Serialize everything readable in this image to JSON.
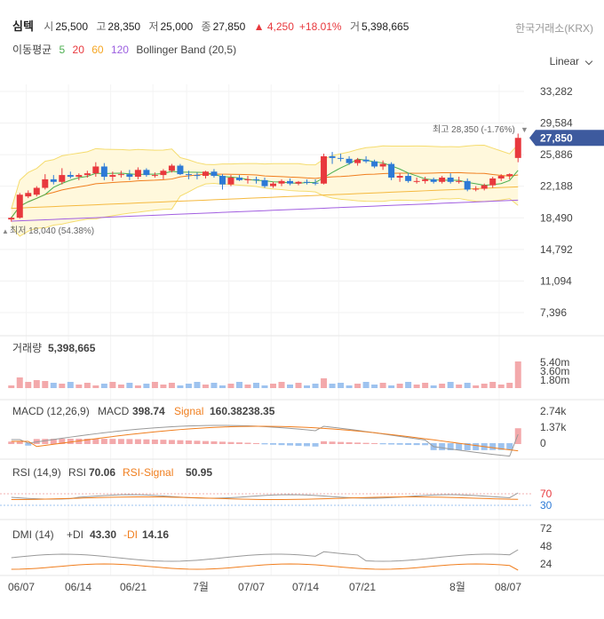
{
  "header": {
    "name": "심텍",
    "open_label": "시",
    "open": "25,500",
    "high_label": "고",
    "high": "28,350",
    "low_label": "저",
    "low": "25,000",
    "close_label": "종",
    "close": "27,850",
    "change": "▲ 4,250",
    "change_pct": "+18.01%",
    "volume_label": "거",
    "volume": "5,398,665",
    "exchange": "한국거래소(KRX)"
  },
  "ma_legend": {
    "title": "이동평균",
    "items": [
      {
        "label": "5",
        "color": "#4caf50"
      },
      {
        "label": "20",
        "color": "#e8383d"
      },
      {
        "label": "60",
        "color": "#f5a623"
      },
      {
        "label": "120",
        "color": "#9c5fe0"
      }
    ],
    "bollinger": "Bollinger Band (20,5)"
  },
  "scale_selector": "Linear",
  "colors": {
    "up": "#e8383d",
    "down": "#2d7ad6",
    "bollinger": "#f5dc6e",
    "bb_fill": "#fff8dc",
    "ma5": "#4caf50",
    "ma20": "#f07e1e",
    "ma60": "#f5b93f",
    "ma120": "#a25fe0",
    "price_tag": "#3d5a9e"
  },
  "chart_data": {
    "type": "candlestick",
    "y_ticks": [
      "33,282",
      "29,584",
      "25,886",
      "22,188",
      "18,490",
      "14,792",
      "11,094",
      "7,396"
    ],
    "ylim": [
      7396,
      33282
    ],
    "x_ticks": [
      "06/07",
      "06/14",
      "06/21",
      "7월",
      "07/07",
      "07/14",
      "07/21",
      "8월",
      "08/07"
    ],
    "high_marker": "최고 28,350 (-1.76%)",
    "low_marker": "최저 18,040 (54.38%)",
    "last_price_tag": "27,850",
    "candles": [
      [
        18300,
        18600,
        18040,
        18500
      ],
      [
        18500,
        21400,
        18400,
        21200
      ],
      [
        21000,
        21700,
        20800,
        21400
      ],
      [
        21200,
        22200,
        21000,
        22000
      ],
      [
        22000,
        23600,
        21800,
        23000
      ],
      [
        23000,
        23500,
        22400,
        22700
      ],
      [
        22700,
        24300,
        22400,
        23500
      ],
      [
        23500,
        23900,
        23100,
        23300
      ],
      [
        23300,
        23700,
        22900,
        23500
      ],
      [
        23500,
        24000,
        23200,
        23700
      ],
      [
        23700,
        25000,
        23300,
        24500
      ],
      [
        24500,
        24900,
        22900,
        23300
      ],
      [
        23300,
        23900,
        22800,
        23500
      ],
      [
        23500,
        24000,
        23200,
        23600
      ],
      [
        23600,
        24100,
        22900,
        23300
      ],
      [
        23300,
        24400,
        23000,
        24100
      ],
      [
        24100,
        24300,
        23300,
        23500
      ],
      [
        23500,
        23800,
        23200,
        23500
      ],
      [
        23500,
        24200,
        23000,
        24000
      ],
      [
        24000,
        24800,
        23800,
        24600
      ],
      [
        24600,
        24800,
        23500,
        23600
      ],
      [
        23600,
        24000,
        23000,
        23500
      ],
      [
        23500,
        23800,
        23000,
        23400
      ],
      [
        23400,
        24000,
        23100,
        23900
      ],
      [
        23900,
        24200,
        23200,
        23400
      ],
      [
        23400,
        23600,
        21800,
        22400
      ],
      [
        22400,
        23500,
        22200,
        23200
      ],
      [
        23200,
        23500,
        22800,
        22900
      ],
      [
        22900,
        23400,
        22500,
        23000
      ],
      [
        23000,
        23300,
        22500,
        22900
      ],
      [
        22900,
        23200,
        22000,
        22200
      ],
      [
        22200,
        22700,
        22000,
        22500
      ],
      [
        22500,
        23000,
        22200,
        22800
      ],
      [
        22800,
        23100,
        22300,
        22500
      ],
      [
        22500,
        22800,
        22300,
        22700
      ],
      [
        22700,
        23000,
        22400,
        22600
      ],
      [
        22600,
        23000,
        22300,
        22500
      ],
      [
        22500,
        26000,
        22400,
        25700
      ],
      [
        25700,
        26200,
        24800,
        25500
      ],
      [
        25500,
        26000,
        25100,
        25400
      ],
      [
        25400,
        25700,
        24700,
        24900
      ],
      [
        24900,
        25500,
        24600,
        25300
      ],
      [
        25300,
        25700,
        24900,
        25100
      ],
      [
        25100,
        25300,
        24300,
        24500
      ],
      [
        24500,
        25200,
        24100,
        24800
      ],
      [
        24800,
        25000,
        22900,
        23200
      ],
      [
        23200,
        23700,
        22700,
        23400
      ],
      [
        23400,
        23700,
        22600,
        22800
      ],
      [
        22800,
        23200,
        22500,
        22800
      ],
      [
        22800,
        23300,
        22500,
        23000
      ],
      [
        23000,
        23200,
        22500,
        22700
      ],
      [
        22700,
        23400,
        22500,
        23200
      ],
      [
        23200,
        23700,
        22500,
        22700
      ],
      [
        22700,
        23300,
        22500,
        22800
      ],
      [
        22800,
        23100,
        21600,
        21800
      ],
      [
        21800,
        22200,
        21600,
        21900
      ],
      [
        21900,
        22500,
        21700,
        22300
      ],
      [
        22300,
        23300,
        22000,
        23100
      ],
      [
        23100,
        23600,
        22800,
        23400
      ],
      [
        23400,
        23700,
        23000,
        23600
      ],
      [
        25500,
        28350,
        25000,
        27850
      ]
    ],
    "volume_panel": {
      "label": "거래량",
      "value": "5,398,665",
      "y_ticks": [
        "5.40m",
        "3.60m",
        "1.80m"
      ]
    },
    "macd_panel": {
      "label": "MACD (12,26,9)",
      "macd_label": "MACD",
      "macd": "398.74",
      "signal_label": "Signal",
      "signal": "160.38238.35",
      "y_ticks": [
        "2.74k",
        "1.37k",
        "0"
      ]
    },
    "rsi_panel": {
      "label": "RSI (14,9)",
      "rsi_label": "RSI",
      "rsi": "70.06",
      "signal_label": "RSI-Signal",
      "signal": "50.95",
      "y_ticks": [
        "70",
        "30"
      ]
    },
    "dmi_panel": {
      "label": "DMI (14)",
      "pdi_label": "+DI",
      "pdi": "43.30",
      "mdi_label": "-DI",
      "mdi": "14.16",
      "y_ticks": [
        "72",
        "48",
        "24"
      ]
    }
  }
}
